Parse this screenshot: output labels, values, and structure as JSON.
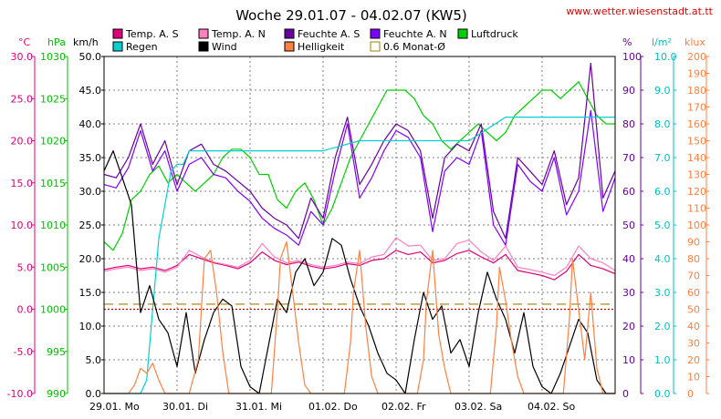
{
  "chart_data": {
    "type": "line",
    "title": "Woche 29.01.07 - 04.02.07 (KW5)",
    "source": "www.wetter.wiesenstadt.at.tt",
    "x_ticks": [
      "29.01. Mo",
      "30.01. Di",
      "31.01. Mi",
      "01.02. Do",
      "02.02. Fr",
      "03.02. Sa",
      "04.02. So"
    ],
    "x_start_hour": 0,
    "x_range_hours": 168,
    "gridlines": true,
    "legend": [
      {
        "label": "Temp. A. S",
        "color": "#e0007a"
      },
      {
        "label": "Temp. A. N",
        "color": "#ff80c0"
      },
      {
        "label": "Feuchte A. S",
        "color": "#6a00a0"
      },
      {
        "label": "Feuchte A. N",
        "color": "#8000ff"
      },
      {
        "label": "Luftdruck",
        "color": "#00d000"
      },
      {
        "label": "Regen",
        "color": "#00d0d0"
      },
      {
        "label": "Wind",
        "color": "#000000"
      },
      {
        "label": "Helligkeit",
        "color": "#ff8040"
      },
      {
        "label": "0.6 Monat-Ø",
        "color": "#a08000"
      }
    ],
    "axes": {
      "temp": {
        "unit": "°C",
        "range": [
          -10,
          30
        ],
        "ticks": [
          "30.0",
          "25.0",
          "20.0",
          "15.0",
          "10.0",
          "5.0",
          "0.0",
          "-5.0",
          "-10.0"
        ],
        "color": "#e0007a"
      },
      "pressure": {
        "unit": "hPa",
        "range": [
          990,
          1030
        ],
        "ticks": [
          "1030",
          "1025",
          "1020",
          "1015",
          "1010",
          "1005",
          "1000",
          "995",
          "990"
        ],
        "color": "#00c000"
      },
      "wind": {
        "unit": "km/h",
        "range": [
          0,
          50
        ],
        "ticks": [
          "50.0",
          "45.0",
          "40.0",
          "35.0",
          "30.0",
          "25.0",
          "20.0",
          "15.0",
          "10.0",
          "5.0",
          "0.0"
        ],
        "color": "#000000"
      },
      "humidity": {
        "unit": "%",
        "range": [
          0,
          100
        ],
        "ticks": [
          "100",
          "90",
          "80",
          "70",
          "60",
          "50",
          "40",
          "30",
          "20",
          "10",
          "0"
        ],
        "color": "#6a00a0"
      },
      "rain": {
        "unit": "l/m²",
        "range": [
          0,
          10
        ],
        "ticks": [
          "10.0",
          "9.0",
          "8.0",
          "7.0",
          "6.0",
          "5.0",
          "4.0",
          "3.0",
          "2.0",
          "1.0",
          "0.0"
        ],
        "color": "#00c0c0"
      },
      "light": {
        "unit": "klux",
        "range": [
          0,
          200
        ],
        "ticks": [
          "200",
          "190",
          "180",
          "170",
          "160",
          "150",
          "140",
          "130",
          "120",
          "110",
          "100",
          "90",
          "80",
          "70",
          "60",
          "50",
          "40",
          "30",
          "20",
          "10",
          "0"
        ],
        "color": "#ff8040"
      }
    },
    "reference_lines": [
      {
        "name": "0.6 Monat-Ø",
        "value": 0.6,
        "axis": "temp",
        "color": "#a08000"
      },
      {
        "name": "0°C",
        "value": 0.0,
        "axis": "temp",
        "color": "#c00000"
      }
    ],
    "series": [
      {
        "name": "Luftdruck",
        "axis": "pressure",
        "color": "#00d000",
        "x": [
          0,
          3,
          6,
          9,
          12,
          15,
          18,
          21,
          24,
          27,
          30,
          33,
          36,
          39,
          42,
          45,
          48,
          51,
          54,
          57,
          60,
          63,
          66,
          69,
          72,
          75,
          78,
          81,
          84,
          87,
          90,
          93,
          96,
          99,
          102,
          105,
          108,
          111,
          114,
          117,
          120,
          123,
          126,
          129,
          132,
          135,
          138,
          141,
          144,
          147,
          150,
          153,
          156,
          159,
          162,
          165,
          168
        ],
        "y": [
          1008,
          1007,
          1009,
          1013,
          1014,
          1016,
          1017,
          1015,
          1016,
          1015,
          1014,
          1015,
          1016,
          1018,
          1019,
          1019,
          1018,
          1016,
          1016,
          1013,
          1012,
          1014,
          1015,
          1013,
          1010,
          1012,
          1015,
          1018,
          1020,
          1022,
          1024,
          1026,
          1026,
          1026,
          1025,
          1023,
          1022,
          1020,
          1019,
          1020,
          1021,
          1022,
          1021,
          1020,
          1021,
          1023,
          1024,
          1025,
          1026,
          1026,
          1025,
          1026,
          1027,
          1025,
          1023,
          1022,
          1022
        ]
      },
      {
        "name": "Temp. A. S",
        "axis": "temp",
        "color": "#e0007a",
        "x": [
          0,
          4,
          8,
          12,
          16,
          20,
          24,
          28,
          32,
          36,
          40,
          44,
          48,
          52,
          56,
          60,
          64,
          68,
          72,
          76,
          80,
          84,
          88,
          92,
          96,
          100,
          104,
          108,
          112,
          116,
          120,
          124,
          128,
          132,
          136,
          140,
          144,
          148,
          152,
          156,
          160,
          164,
          168
        ],
        "y": [
          4.7,
          5.0,
          5.2,
          4.8,
          5.0,
          4.6,
          5.2,
          6.5,
          6.0,
          5.5,
          5.2,
          4.8,
          5.5,
          6.8,
          5.8,
          5.3,
          5.6,
          5.1,
          4.8,
          5.0,
          5.4,
          5.2,
          5.8,
          6.0,
          7.0,
          6.5,
          6.8,
          5.5,
          5.8,
          6.6,
          7.0,
          6.2,
          5.5,
          6.5,
          4.6,
          4.3,
          4.0,
          3.5,
          4.5,
          6.5,
          5.2,
          4.8,
          4.2
        ]
      },
      {
        "name": "Temp. A. N",
        "axis": "temp",
        "color": "#ff80c0",
        "x": [
          0,
          4,
          8,
          12,
          16,
          20,
          24,
          28,
          32,
          36,
          40,
          44,
          48,
          52,
          56,
          60,
          64,
          68,
          72,
          76,
          80,
          84,
          88,
          92,
          96,
          100,
          104,
          108,
          112,
          116,
          120,
          124,
          128,
          132,
          136,
          140,
          144,
          148,
          152,
          156,
          160,
          164,
          168
        ],
        "y": [
          4.5,
          4.8,
          5.0,
          4.6,
          4.8,
          4.4,
          5.0,
          7.0,
          6.2,
          5.6,
          5.3,
          5.0,
          5.8,
          7.8,
          6.2,
          5.5,
          5.8,
          5.3,
          5.0,
          5.2,
          5.6,
          5.4,
          6.2,
          6.5,
          8.5,
          7.5,
          7.6,
          5.8,
          6.0,
          7.8,
          8.2,
          6.8,
          5.8,
          7.5,
          5.0,
          4.7,
          4.4,
          4.0,
          5.0,
          7.5,
          6.0,
          5.5,
          4.6
        ]
      },
      {
        "name": "Feuchte A. S",
        "axis": "humidity",
        "color": "#6a00a0",
        "x": [
          0,
          4,
          8,
          12,
          16,
          20,
          24,
          28,
          32,
          36,
          40,
          44,
          48,
          52,
          56,
          60,
          64,
          68,
          72,
          76,
          80,
          84,
          88,
          92,
          96,
          100,
          104,
          108,
          112,
          116,
          120,
          124,
          128,
          132,
          136,
          140,
          144,
          148,
          152,
          156,
          160,
          164,
          168
        ],
        "y": [
          65,
          64,
          70,
          80,
          68,
          75,
          62,
          72,
          74,
          68,
          66,
          63,
          60,
          55,
          52,
          50,
          46,
          58,
          52,
          70,
          82,
          62,
          68,
          75,
          80,
          78,
          72,
          52,
          70,
          74,
          72,
          80,
          54,
          46,
          70,
          66,
          62,
          72,
          56,
          64,
          98,
          58,
          66
        ]
      },
      {
        "name": "Feuchte A. N",
        "axis": "humidity",
        "color": "#8000ff",
        "x": [
          0,
          4,
          8,
          12,
          16,
          20,
          24,
          28,
          32,
          36,
          40,
          44,
          48,
          52,
          56,
          60,
          64,
          68,
          72,
          76,
          80,
          84,
          88,
          92,
          96,
          100,
          104,
          108,
          112,
          116,
          120,
          124,
          128,
          132,
          136,
          140,
          144,
          148,
          152,
          156,
          160,
          164,
          168
        ],
        "y": [
          62,
          61,
          67,
          78,
          66,
          72,
          60,
          68,
          70,
          65,
          64,
          60,
          57,
          52,
          49,
          47,
          44,
          54,
          50,
          66,
          80,
          58,
          64,
          72,
          78,
          76,
          70,
          48,
          66,
          70,
          68,
          78,
          50,
          44,
          68,
          63,
          60,
          70,
          53,
          60,
          84,
          54,
          64
        ]
      },
      {
        "name": "Regen",
        "axis": "rain",
        "color": "#00d0d0",
        "x": [
          0,
          12,
          14,
          16,
          18,
          20,
          22,
          24,
          26,
          28,
          36,
          48,
          60,
          72,
          84,
          90,
          96,
          108,
          120,
          132,
          144,
          156,
          168
        ],
        "y": [
          0,
          0,
          0.4,
          2.5,
          4.6,
          5.6,
          6.6,
          6.8,
          6.8,
          7.2,
          7.2,
          7.2,
          7.2,
          7.2,
          7.5,
          7.5,
          7.5,
          7.5,
          7.5,
          8.2,
          8.2,
          8.2,
          8.2
        ]
      },
      {
        "name": "Wind",
        "axis": "wind",
        "color": "#000000",
        "x": [
          0,
          3,
          6,
          9,
          12,
          15,
          18,
          21,
          24,
          27,
          30,
          33,
          36,
          39,
          42,
          45,
          48,
          51,
          54,
          57,
          60,
          63,
          66,
          69,
          72,
          75,
          78,
          81,
          84,
          87,
          90,
          93,
          96,
          99,
          102,
          105,
          108,
          111,
          114,
          117,
          120,
          123,
          126,
          129,
          132,
          135,
          138,
          141,
          144,
          147,
          150,
          153,
          156,
          159,
          162,
          165,
          168
        ],
        "y": [
          33,
          36,
          32,
          28,
          12,
          16,
          11,
          9,
          4,
          12,
          3,
          8,
          12,
          14,
          13,
          4,
          1,
          0,
          7,
          14,
          12,
          18,
          20,
          16,
          18,
          23,
          22,
          17,
          13,
          10,
          6,
          3,
          2,
          0,
          8,
          15,
          11,
          13,
          6,
          8,
          4,
          12,
          18,
          14,
          11,
          6,
          12,
          4,
          1,
          0,
          3,
          7,
          11,
          9,
          2,
          0,
          0
        ]
      },
      {
        "name": "Helligkeit",
        "axis": "light",
        "color": "#ff8040",
        "x": [
          0,
          4,
          8,
          10,
          12,
          14,
          16,
          18,
          20,
          24,
          28,
          31,
          33,
          35,
          37,
          39,
          41,
          44,
          48,
          55,
          57,
          58,
          60,
          62,
          64,
          66,
          68,
          72,
          79,
          81,
          82,
          84,
          86,
          88,
          90,
          92,
          96,
          103,
          105,
          106,
          108,
          110,
          112,
          114,
          116,
          120,
          127,
          129,
          130,
          132,
          134,
          136,
          138,
          140,
          144,
          151,
          153,
          154,
          156,
          158,
          160,
          162,
          164,
          168
        ],
        "y": [
          0,
          0,
          0,
          5,
          15,
          12,
          18,
          8,
          0,
          0,
          0,
          20,
          80,
          85,
          60,
          25,
          0,
          0,
          0,
          0,
          50,
          80,
          90,
          60,
          30,
          5,
          0,
          0,
          0,
          30,
          60,
          85,
          40,
          10,
          0,
          0,
          0,
          0,
          20,
          55,
          85,
          35,
          15,
          0,
          0,
          0,
          0,
          40,
          75,
          55,
          30,
          10,
          0,
          0,
          0,
          0,
          45,
          80,
          50,
          20,
          60,
          15,
          0,
          0
        ]
      }
    ]
  }
}
